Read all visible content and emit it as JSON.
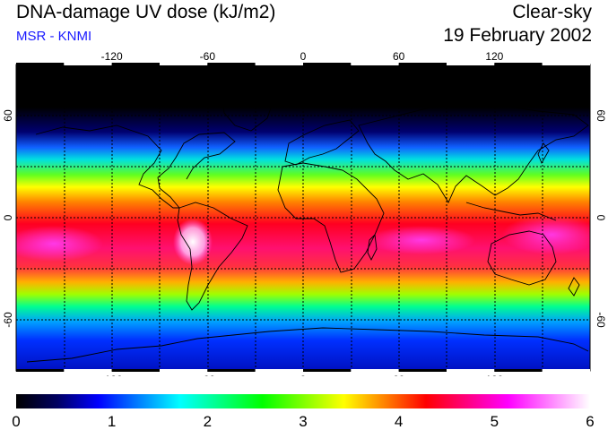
{
  "header": {
    "title": "DNA-damage UV dose (kJ/m2)",
    "source": "MSR - KNMI",
    "mode": "Clear-sky",
    "date": "19 February 2002"
  },
  "map": {
    "lon_ticks": [
      "-120",
      "-60",
      "0",
      "60",
      "120"
    ],
    "lat_ticks": [
      "60",
      "0",
      "-60"
    ]
  },
  "colorbar": {
    "ticks": [
      "0",
      "1",
      "2",
      "3",
      "4",
      "5",
      "6"
    ],
    "stops": [
      "#000000",
      "#000060",
      "#0000ff",
      "#0080ff",
      "#00ffff",
      "#00ff80",
      "#00ff00",
      "#80ff00",
      "#ffff00",
      "#ff8000",
      "#ff0000",
      "#ff0080",
      "#ff00ff",
      "#ff80ff",
      "#ffffff"
    ]
  }
}
